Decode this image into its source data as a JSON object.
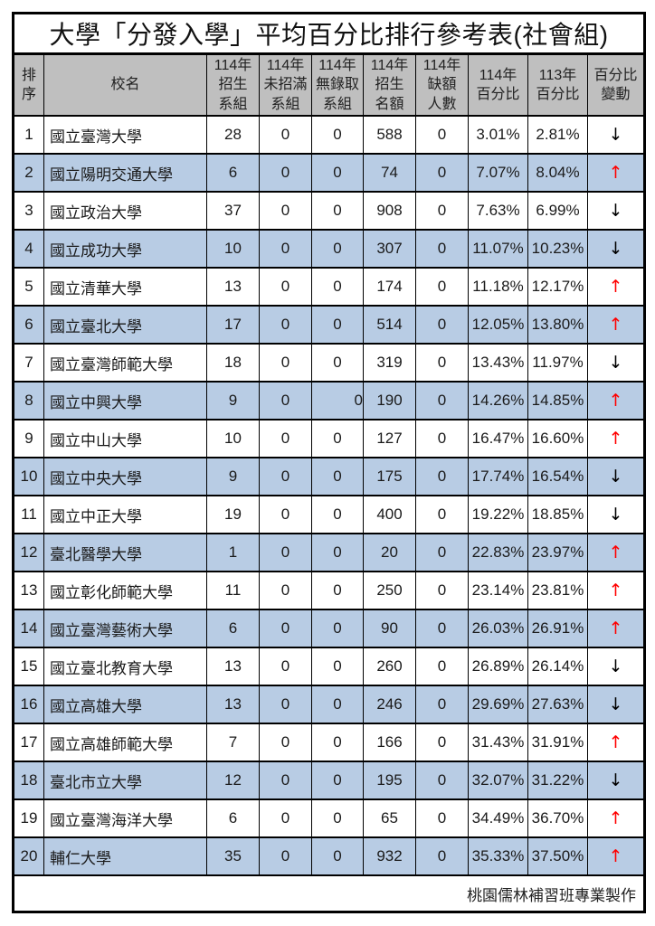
{
  "title": "大學「分發入學」平均百分比排行參考表(社會組)",
  "footer": {
    "credit": "桃園儒林補習班專業製作"
  },
  "colors": {
    "header_bg": "#bfbfbf",
    "alt_row_bg": "#b8cce4",
    "arrow_up": "#ff0000",
    "arrow_down": "#000000"
  },
  "columns": [
    {
      "key": "rank",
      "label": "排\n序"
    },
    {
      "key": "school",
      "label": "校名"
    },
    {
      "key": "groups",
      "label": "114年\n招生\n系組"
    },
    {
      "key": "unfilled",
      "label": "114年\n未招滿\n系組"
    },
    {
      "key": "no_admission",
      "label": "114年\n無錄取\n系組"
    },
    {
      "key": "quota",
      "label": "114年\n招生\n名額"
    },
    {
      "key": "shortage",
      "label": "114年\n缺額\n人數"
    },
    {
      "key": "pct_114",
      "label": "114年\n百分比"
    },
    {
      "key": "pct_113",
      "label": "113年\n百分比"
    },
    {
      "key": "change",
      "label": "百分比\n變動"
    }
  ],
  "rows": [
    {
      "rank": "1",
      "school": "國立臺灣大學",
      "groups": "28",
      "unfilled": "0",
      "no_admission": "0",
      "quota": "588",
      "shortage": "0",
      "pct_114": "3.01%",
      "pct_113": "2.81%",
      "change": "↓",
      "change_dir": "down"
    },
    {
      "rank": "2",
      "school": "國立陽明交通大學",
      "groups": "6",
      "unfilled": "0",
      "no_admission": "0",
      "quota": "74",
      "shortage": "0",
      "pct_114": "7.07%",
      "pct_113": "8.04%",
      "change": "↑",
      "change_dir": "up"
    },
    {
      "rank": "3",
      "school": "國立政治大學",
      "groups": "37",
      "unfilled": "0",
      "no_admission": "0",
      "quota": "908",
      "shortage": "0",
      "pct_114": "7.63%",
      "pct_113": "6.99%",
      "change": "↓",
      "change_dir": "down"
    },
    {
      "rank": "4",
      "school": "國立成功大學",
      "groups": "10",
      "unfilled": "0",
      "no_admission": "0",
      "quota": "307",
      "shortage": "0",
      "pct_114": "11.07%",
      "pct_113": "10.23%",
      "change": "↓",
      "change_dir": "down"
    },
    {
      "rank": "5",
      "school": "國立清華大學",
      "groups": "13",
      "unfilled": "0",
      "no_admission": "0",
      "quota": "174",
      "shortage": "0",
      "pct_114": "11.18%",
      "pct_113": "12.17%",
      "change": "↑",
      "change_dir": "up"
    },
    {
      "rank": "6",
      "school": "國立臺北大學",
      "groups": "17",
      "unfilled": "0",
      "no_admission": "0",
      "quota": "514",
      "shortage": "0",
      "pct_114": "12.05%",
      "pct_113": "13.80%",
      "change": "↑",
      "change_dir": "up"
    },
    {
      "rank": "7",
      "school": "國立臺灣師範大學",
      "groups": "18",
      "unfilled": "0",
      "no_admission": "0",
      "quota": "319",
      "shortage": "0",
      "pct_114": "13.43%",
      "pct_113": "11.97%",
      "change": "↓",
      "change_dir": "down"
    },
    {
      "rank": "8",
      "school": "國立中興大學",
      "groups": "9",
      "unfilled": "0",
      "no_admission": "0",
      "no_admission_align": "right",
      "quota": "190",
      "shortage": "0",
      "pct_114": "14.26%",
      "pct_113": "14.85%",
      "change": "↑",
      "change_dir": "up"
    },
    {
      "rank": "9",
      "school": "國立中山大學",
      "groups": "10",
      "unfilled": "0",
      "no_admission": "0",
      "quota": "127",
      "shortage": "0",
      "pct_114": "16.47%",
      "pct_113": "16.60%",
      "change": "↑",
      "change_dir": "up"
    },
    {
      "rank": "10",
      "school": "國立中央大學",
      "groups": "9",
      "unfilled": "0",
      "no_admission": "0",
      "quota": "175",
      "shortage": "0",
      "pct_114": "17.74%",
      "pct_113": "16.54%",
      "change": "↓",
      "change_dir": "down"
    },
    {
      "rank": "11",
      "school": "國立中正大學",
      "groups": "19",
      "unfilled": "0",
      "no_admission": "0",
      "quota": "400",
      "shortage": "0",
      "pct_114": "19.22%",
      "pct_113": "18.85%",
      "change": "↓",
      "change_dir": "down"
    },
    {
      "rank": "12",
      "school": "臺北醫學大學",
      "groups": "1",
      "unfilled": "0",
      "no_admission": "0",
      "quota": "20",
      "shortage": "0",
      "pct_114": "22.83%",
      "pct_113": "23.97%",
      "change": "↑",
      "change_dir": "up"
    },
    {
      "rank": "13",
      "school": "國立彰化師範大學",
      "groups": "11",
      "unfilled": "0",
      "no_admission": "0",
      "quota": "250",
      "shortage": "0",
      "pct_114": "23.14%",
      "pct_113": "23.81%",
      "change": "↑",
      "change_dir": "up"
    },
    {
      "rank": "14",
      "school": "國立臺灣藝術大學",
      "groups": "6",
      "unfilled": "0",
      "no_admission": "0",
      "quota": "90",
      "shortage": "0",
      "pct_114": "26.03%",
      "pct_113": "26.91%",
      "change": "↑",
      "change_dir": "up"
    },
    {
      "rank": "15",
      "school": "國立臺北教育大學",
      "groups": "13",
      "unfilled": "0",
      "no_admission": "0",
      "quota": "260",
      "shortage": "0",
      "pct_114": "26.89%",
      "pct_113": "26.14%",
      "change": "↓",
      "change_dir": "down"
    },
    {
      "rank": "16",
      "school": "國立高雄大學",
      "groups": "13",
      "unfilled": "0",
      "no_admission": "0",
      "quota": "246",
      "shortage": "0",
      "pct_114": "29.69%",
      "pct_113": "27.63%",
      "change": "↓",
      "change_dir": "down"
    },
    {
      "rank": "17",
      "school": "國立高雄師範大學",
      "groups": "7",
      "unfilled": "0",
      "no_admission": "0",
      "quota": "166",
      "shortage": "0",
      "pct_114": "31.43%",
      "pct_113": "31.91%",
      "change": "↑",
      "change_dir": "up"
    },
    {
      "rank": "18",
      "school": "臺北市立大學",
      "groups": "12",
      "unfilled": "0",
      "no_admission": "0",
      "quota": "195",
      "shortage": "0",
      "pct_114": "32.07%",
      "pct_113": "31.22%",
      "change": "↓",
      "change_dir": "down"
    },
    {
      "rank": "19",
      "school": "國立臺灣海洋大學",
      "groups": "6",
      "unfilled": "0",
      "no_admission": "0",
      "quota": "65",
      "shortage": "0",
      "pct_114": "34.49%",
      "pct_113": "36.70%",
      "change": "↑",
      "change_dir": "up"
    },
    {
      "rank": "20",
      "school": "輔仁大學",
      "groups": "35",
      "unfilled": "0",
      "no_admission": "0",
      "quota": "932",
      "shortage": "0",
      "pct_114": "35.33%",
      "pct_113": "37.50%",
      "change": "↑",
      "change_dir": "up"
    }
  ]
}
